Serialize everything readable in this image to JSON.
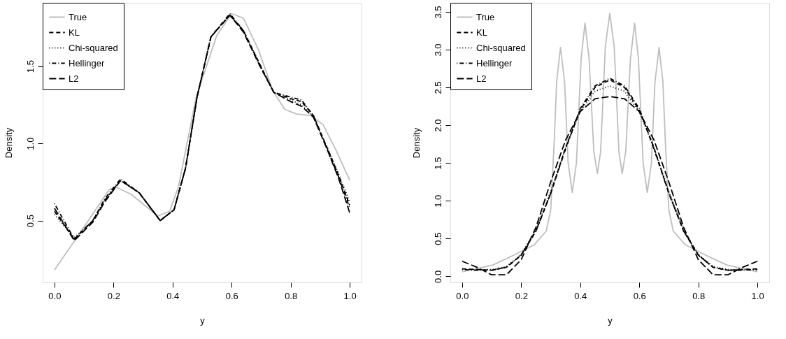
{
  "chart_data": [
    {
      "type": "line",
      "xlabel": "y",
      "ylabel": "Density",
      "legend": "top left",
      "grid": false,
      "xlim": [
        -0.04,
        1.04
      ],
      "ylim": [
        0.1,
        1.91
      ],
      "xticks": [
        {
          "value": 0,
          "label": "0.0"
        },
        {
          "value": 0.2,
          "label": "0.2"
        },
        {
          "value": 0.4,
          "label": "0.4"
        },
        {
          "value": 0.6,
          "label": "0.6"
        },
        {
          "value": 0.8,
          "label": "0.8"
        },
        {
          "value": 1,
          "label": "1.0"
        }
      ],
      "yticks": [
        {
          "value": 0.5,
          "label": "0.5"
        },
        {
          "value": 1,
          "label": "1.0"
        },
        {
          "value": 1.5,
          "label": "1.5"
        }
      ],
      "series": [
        {
          "name": "True",
          "color": "#bebebe",
          "line_style": "solid",
          "x": [
            0,
            0.09,
            0.185,
            0.205,
            0.26,
            0.35,
            0.39,
            0.42,
            0.48,
            0.55,
            0.6,
            0.64,
            0.69,
            0.74,
            0.78,
            0.82,
            0.87,
            0.91,
            0.955,
            1.0
          ],
          "values": [
            0.18,
            0.43,
            0.7,
            0.72,
            0.67,
            0.53,
            0.56,
            0.72,
            1.3,
            1.7,
            1.84,
            1.81,
            1.61,
            1.34,
            1.22,
            1.19,
            1.18,
            1.12,
            0.95,
            0.76
          ]
        },
        {
          "name": "KL",
          "color": "#000000",
          "line_style": "dashed",
          "x": [
            0,
            0.067,
            0.13,
            0.17,
            0.224,
            0.287,
            0.358,
            0.405,
            0.444,
            0.483,
            0.53,
            0.594,
            0.64,
            0.696,
            0.743,
            0.8,
            0.837,
            0.877,
            0.924,
            0.963,
            1.0
          ],
          "values": [
            0.56,
            0.38,
            0.5,
            0.63,
            0.76,
            0.68,
            0.5,
            0.57,
            0.84,
            1.3,
            1.69,
            1.83,
            1.73,
            1.51,
            1.33,
            1.29,
            1.27,
            1.18,
            0.97,
            0.79,
            0.6
          ]
        },
        {
          "name": "Chi-squared",
          "color": "#000000",
          "line_style": "dotted",
          "x": [
            0,
            0.067,
            0.13,
            0.17,
            0.224,
            0.287,
            0.358,
            0.405,
            0.444,
            0.483,
            0.53,
            0.594,
            0.64,
            0.696,
            0.743,
            0.8,
            0.837,
            0.877,
            0.924,
            0.963,
            1.0
          ],
          "values": [
            0.54,
            0.39,
            0.5,
            0.63,
            0.76,
            0.68,
            0.5,
            0.57,
            0.84,
            1.3,
            1.69,
            1.83,
            1.73,
            1.51,
            1.33,
            1.28,
            1.25,
            1.17,
            0.97,
            0.8,
            0.62
          ]
        },
        {
          "name": "Hellinger",
          "color": "#000000",
          "line_style": "dotdash",
          "x": [
            0,
            0.067,
            0.13,
            0.17,
            0.224,
            0.287,
            0.358,
            0.405,
            0.444,
            0.483,
            0.53,
            0.594,
            0.64,
            0.696,
            0.743,
            0.8,
            0.837,
            0.877,
            0.924,
            0.963,
            1.0
          ],
          "values": [
            0.61,
            0.38,
            0.5,
            0.64,
            0.77,
            0.68,
            0.5,
            0.57,
            0.84,
            1.3,
            1.69,
            1.84,
            1.73,
            1.5,
            1.33,
            1.3,
            1.28,
            1.18,
            0.96,
            0.78,
            0.58
          ]
        },
        {
          "name": "L2",
          "color": "#000000",
          "line_style": "longdash",
          "x": [
            0,
            0.067,
            0.13,
            0.17,
            0.224,
            0.287,
            0.358,
            0.405,
            0.444,
            0.483,
            0.53,
            0.594,
            0.64,
            0.696,
            0.743,
            0.8,
            0.837,
            0.877,
            0.924,
            0.963,
            1.0
          ],
          "values": [
            0.58,
            0.37,
            0.49,
            0.62,
            0.76,
            0.68,
            0.5,
            0.57,
            0.84,
            1.3,
            1.69,
            1.83,
            1.72,
            1.5,
            1.33,
            1.27,
            1.24,
            1.17,
            0.96,
            0.77,
            0.55
          ]
        }
      ]
    },
    {
      "type": "line",
      "xlabel": "y",
      "ylabel": "Density",
      "legend": "top left",
      "grid": false,
      "xlim": [
        -0.04,
        1.04
      ],
      "ylim": [
        -0.08,
        3.62
      ],
      "xticks": [
        {
          "value": 0,
          "label": "0.0"
        },
        {
          "value": 0.2,
          "label": "0.2"
        },
        {
          "value": 0.4,
          "label": "0.4"
        },
        {
          "value": 0.6,
          "label": "0.6"
        },
        {
          "value": 0.8,
          "label": "0.8"
        },
        {
          "value": 1,
          "label": "1.0"
        }
      ],
      "yticks": [
        {
          "value": 0,
          "label": "0.0"
        },
        {
          "value": 0.5,
          "label": "0.5"
        },
        {
          "value": 1,
          "label": "1.0"
        },
        {
          "value": 1.5,
          "label": "1.5"
        },
        {
          "value": 2,
          "label": "2.0"
        },
        {
          "value": 2.5,
          "label": "2.5"
        },
        {
          "value": 3,
          "label": "3.0"
        },
        {
          "value": 3.5,
          "label": "3.5"
        }
      ],
      "series": [
        {
          "name": "True",
          "color": "#bebebe",
          "line_style": "solid",
          "x": [
            0,
            0.104,
            0.18,
            0.245,
            0.285,
            0.3,
            0.312,
            0.32,
            0.333,
            0.347,
            0.359,
            0.373,
            0.387,
            0.403,
            0.416,
            0.43,
            0.446,
            0.458,
            0.469,
            0.485,
            0.5,
            0.515,
            0.531,
            0.542,
            0.554,
            0.57,
            0.584,
            0.597,
            0.613,
            0.627,
            0.641,
            0.653,
            0.667,
            0.68,
            0.688,
            0.7,
            0.715,
            0.755,
            0.82,
            0.896,
            1.0
          ],
          "values": [
            0.06,
            0.15,
            0.29,
            0.42,
            0.6,
            0.88,
            1.8,
            2.57,
            3.03,
            2.57,
            1.5,
            1.11,
            1.5,
            2.88,
            3.35,
            2.88,
            1.65,
            1.36,
            1.65,
            3.04,
            3.48,
            3.04,
            1.65,
            1.36,
            1.65,
            2.88,
            3.35,
            2.88,
            1.5,
            1.11,
            1.5,
            2.57,
            3.03,
            2.57,
            1.8,
            0.88,
            0.6,
            0.42,
            0.29,
            0.15,
            0.06
          ]
        },
        {
          "name": "KL",
          "color": "#000000",
          "line_style": "dashed",
          "x": [
            0,
            0.05,
            0.1,
            0.15,
            0.2,
            0.25,
            0.3,
            0.35,
            0.4,
            0.45,
            0.5,
            0.55,
            0.6,
            0.65,
            0.7,
            0.75,
            0.8,
            0.85,
            0.9,
            0.95,
            1.0
          ],
          "values": [
            0.1,
            0.09,
            0.08,
            0.12,
            0.28,
            0.6,
            1.1,
            1.7,
            2.2,
            2.5,
            2.6,
            2.5,
            2.2,
            1.7,
            1.1,
            0.6,
            0.28,
            0.12,
            0.08,
            0.09,
            0.1
          ]
        },
        {
          "name": "Chi-squared",
          "color": "#000000",
          "line_style": "dotted",
          "x": [
            0,
            0.05,
            0.1,
            0.15,
            0.2,
            0.25,
            0.3,
            0.35,
            0.4,
            0.45,
            0.5,
            0.55,
            0.6,
            0.65,
            0.7,
            0.75,
            0.8,
            0.85,
            0.9,
            0.95,
            1.0
          ],
          "values": [
            0.09,
            0.09,
            0.09,
            0.13,
            0.29,
            0.62,
            1.12,
            1.7,
            2.18,
            2.45,
            2.52,
            2.45,
            2.18,
            1.7,
            1.12,
            0.62,
            0.29,
            0.13,
            0.09,
            0.09,
            0.09
          ]
        },
        {
          "name": "Hellinger",
          "color": "#000000",
          "line_style": "dotdash",
          "x": [
            0,
            0.05,
            0.1,
            0.15,
            0.2,
            0.25,
            0.3,
            0.35,
            0.4,
            0.45,
            0.5,
            0.55,
            0.6,
            0.65,
            0.7,
            0.75,
            0.8,
            0.85,
            0.9,
            0.95,
            1.0
          ],
          "values": [
            0.09,
            0.08,
            0.08,
            0.12,
            0.28,
            0.6,
            1.1,
            1.68,
            2.22,
            2.52,
            2.62,
            2.52,
            2.22,
            1.68,
            1.1,
            0.6,
            0.28,
            0.12,
            0.08,
            0.08,
            0.09
          ]
        },
        {
          "name": "L2",
          "color": "#000000",
          "line_style": "longdash",
          "x": [
            0,
            0.05,
            0.1,
            0.15,
            0.2,
            0.25,
            0.3,
            0.35,
            0.4,
            0.45,
            0.5,
            0.55,
            0.6,
            0.65,
            0.7,
            0.75,
            0.8,
            0.85,
            0.9,
            0.95,
            1.0
          ],
          "values": [
            0.2,
            0.12,
            0.02,
            0.02,
            0.22,
            0.65,
            1.25,
            1.8,
            2.18,
            2.35,
            2.38,
            2.35,
            2.18,
            1.8,
            1.25,
            0.65,
            0.22,
            0.02,
            0.02,
            0.12,
            0.2
          ]
        }
      ]
    }
  ]
}
